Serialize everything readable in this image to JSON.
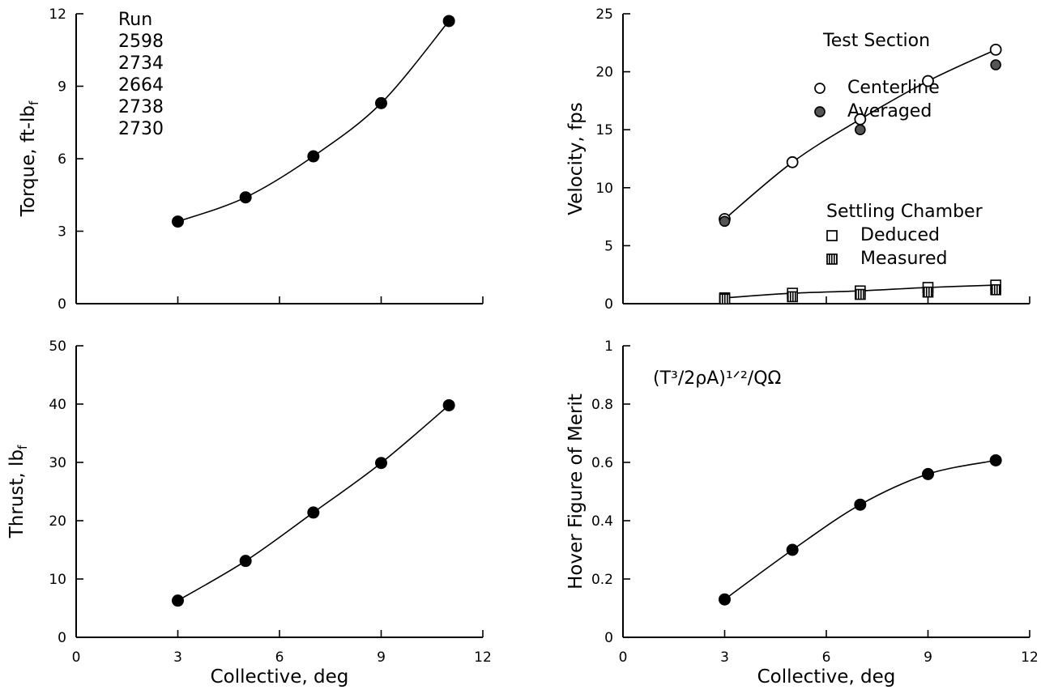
{
  "figure": {
    "run_block": {
      "header": "Run",
      "runs": [
        "2598",
        "2734",
        "2664",
        "2738",
        "2730"
      ]
    }
  },
  "chart_data": [
    {
      "id": "torque",
      "type": "line",
      "xlabel": "Collective, deg",
      "ylabel_main": "Torque, ft-lb",
      "ylabel_sub": "f",
      "xlim": [
        0,
        12
      ],
      "ylim": [
        0,
        12
      ],
      "x_ticks": [
        0,
        3,
        6,
        9,
        12
      ],
      "y_ticks": [
        0,
        3,
        6,
        9,
        12
      ],
      "x_tick_labels": [
        "",
        "",
        "",
        "",
        ""
      ],
      "y_tick_labels": [
        "0",
        "3",
        "6",
        "9",
        "12"
      ],
      "series": [
        {
          "marker": "filled-circle",
          "x": [
            3,
            5,
            7,
            9,
            11
          ],
          "y": [
            3.4,
            4.4,
            6.1,
            8.3,
            11.7
          ]
        }
      ]
    },
    {
      "id": "velocity",
      "type": "line",
      "xlabel": "",
      "ylabel_main": "Velocity, fps",
      "ylabel_sub": "",
      "xlim": [
        0,
        12
      ],
      "ylim": [
        0,
        25
      ],
      "x_ticks": [
        0,
        3,
        6,
        9,
        12
      ],
      "y_ticks": [
        0,
        5,
        10,
        15,
        20,
        25
      ],
      "x_tick_labels": [
        "",
        "",
        "",
        "",
        ""
      ],
      "y_tick_labels": [
        "0",
        "5",
        "10",
        "15",
        "20",
        "25"
      ],
      "legend_groups": [
        {
          "title": "Test Section",
          "entries": [
            "Centerline",
            "Averaged"
          ]
        },
        {
          "title": "Settling Chamber",
          "entries": [
            "Deduced",
            "Measured"
          ]
        }
      ],
      "series": [
        {
          "name": "Centerline",
          "marker": "open-circle",
          "x": [
            3,
            5,
            7,
            9,
            11
          ],
          "y": [
            7.3,
            12.2,
            15.9,
            19.2,
            21.9
          ]
        },
        {
          "name": "Averaged",
          "marker": "shaded-circle",
          "x": [
            3,
            7,
            11
          ],
          "y": [
            7.1,
            15.0,
            20.6
          ]
        },
        {
          "name": "Deduced",
          "marker": "open-square",
          "x": [
            3,
            5,
            7,
            9,
            11
          ],
          "y": [
            0.5,
            0.9,
            1.1,
            1.4,
            1.6
          ]
        },
        {
          "name": "Measured",
          "marker": "hatched-square",
          "x": [
            3,
            5,
            7,
            9,
            11
          ],
          "y": [
            0.4,
            0.6,
            0.8,
            1.0,
            1.2
          ]
        }
      ]
    },
    {
      "id": "thrust",
      "type": "line",
      "xlabel": "Collective, deg",
      "ylabel_main": "Thrust, lb",
      "ylabel_sub": "f",
      "xlim": [
        0,
        12
      ],
      "ylim": [
        0,
        50
      ],
      "x_ticks": [
        0,
        3,
        6,
        9,
        12
      ],
      "y_ticks": [
        0,
        10,
        20,
        30,
        40,
        50
      ],
      "x_tick_labels": [
        "0",
        "3",
        "6",
        "9",
        "12"
      ],
      "y_tick_labels": [
        "0",
        "10",
        "20",
        "30",
        "40",
        "50"
      ],
      "series": [
        {
          "marker": "filled-circle",
          "x": [
            3,
            5,
            7,
            9,
            11
          ],
          "y": [
            6.3,
            13.1,
            21.4,
            29.9,
            39.8
          ]
        }
      ]
    },
    {
      "id": "merit",
      "type": "line",
      "xlabel": "Collective, deg",
      "ylabel_main": "Hover Figure of Merit",
      "ylabel_sub": "",
      "xlim": [
        0,
        12
      ],
      "ylim": [
        0,
        1
      ],
      "x_ticks": [
        0,
        3,
        6,
        9,
        12
      ],
      "y_ticks": [
        0,
        0.2,
        0.4,
        0.6,
        0.8,
        1
      ],
      "x_tick_labels": [
        "0",
        "3",
        "6",
        "9",
        "12"
      ],
      "y_tick_labels": [
        "0",
        "0.2",
        "0.4",
        "0.6",
        "0.8",
        "1"
      ],
      "annotation": "(T³/2ρA)¹ᐟ²/QΩ",
      "series": [
        {
          "marker": "filled-circle",
          "x": [
            3,
            5,
            7,
            9,
            11
          ],
          "y": [
            0.13,
            0.3,
            0.455,
            0.56,
            0.607
          ]
        }
      ]
    }
  ]
}
